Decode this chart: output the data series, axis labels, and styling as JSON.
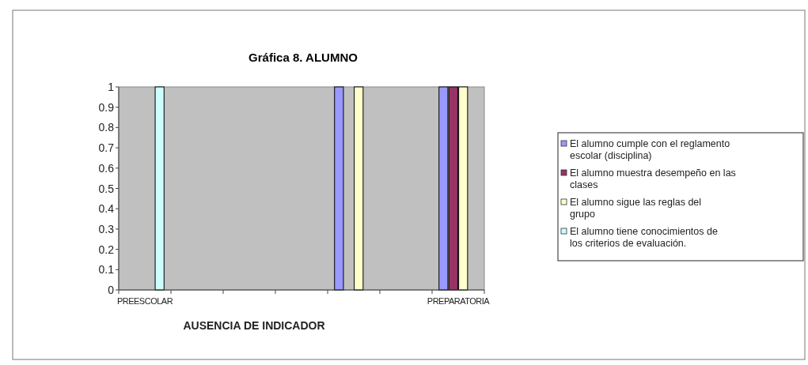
{
  "chart_data": {
    "type": "bar",
    "title": "Gráfica 8. ALUMNO",
    "xlabel": "AUSENCIA DE INDICADOR",
    "categories": [
      "PREESCOLAR",
      null,
      null,
      null,
      null,
      null,
      "PREPARATORIA"
    ],
    "series": [
      {
        "name": "El alumno cumple con el reglamento escolar (disciplina)",
        "color": "#9999ff",
        "values": [
          0,
          null,
          0,
          null,
          1,
          null,
          1
        ]
      },
      {
        "name": "El alumno muestra desempeño en las clases",
        "color": "#993366",
        "values": [
          0,
          null,
          0,
          null,
          0,
          null,
          1
        ]
      },
      {
        "name": "El alumno sigue las reglas del grupo",
        "color": "#ffffcc",
        "values": [
          0,
          null,
          0,
          null,
          1,
          null,
          1
        ]
      },
      {
        "name": "El alumno tiene conocimientos de los criterios de evaluación.",
        "color": "#ccffff",
        "values": [
          1,
          null,
          0,
          null,
          0,
          null,
          0
        ]
      }
    ],
    "ylim": [
      0,
      1
    ],
    "yticks": [
      0,
      0.1,
      0.2,
      0.3,
      0.4,
      0.5,
      0.6,
      0.7,
      0.8,
      0.9,
      1
    ],
    "grid": false,
    "legend": "right"
  }
}
